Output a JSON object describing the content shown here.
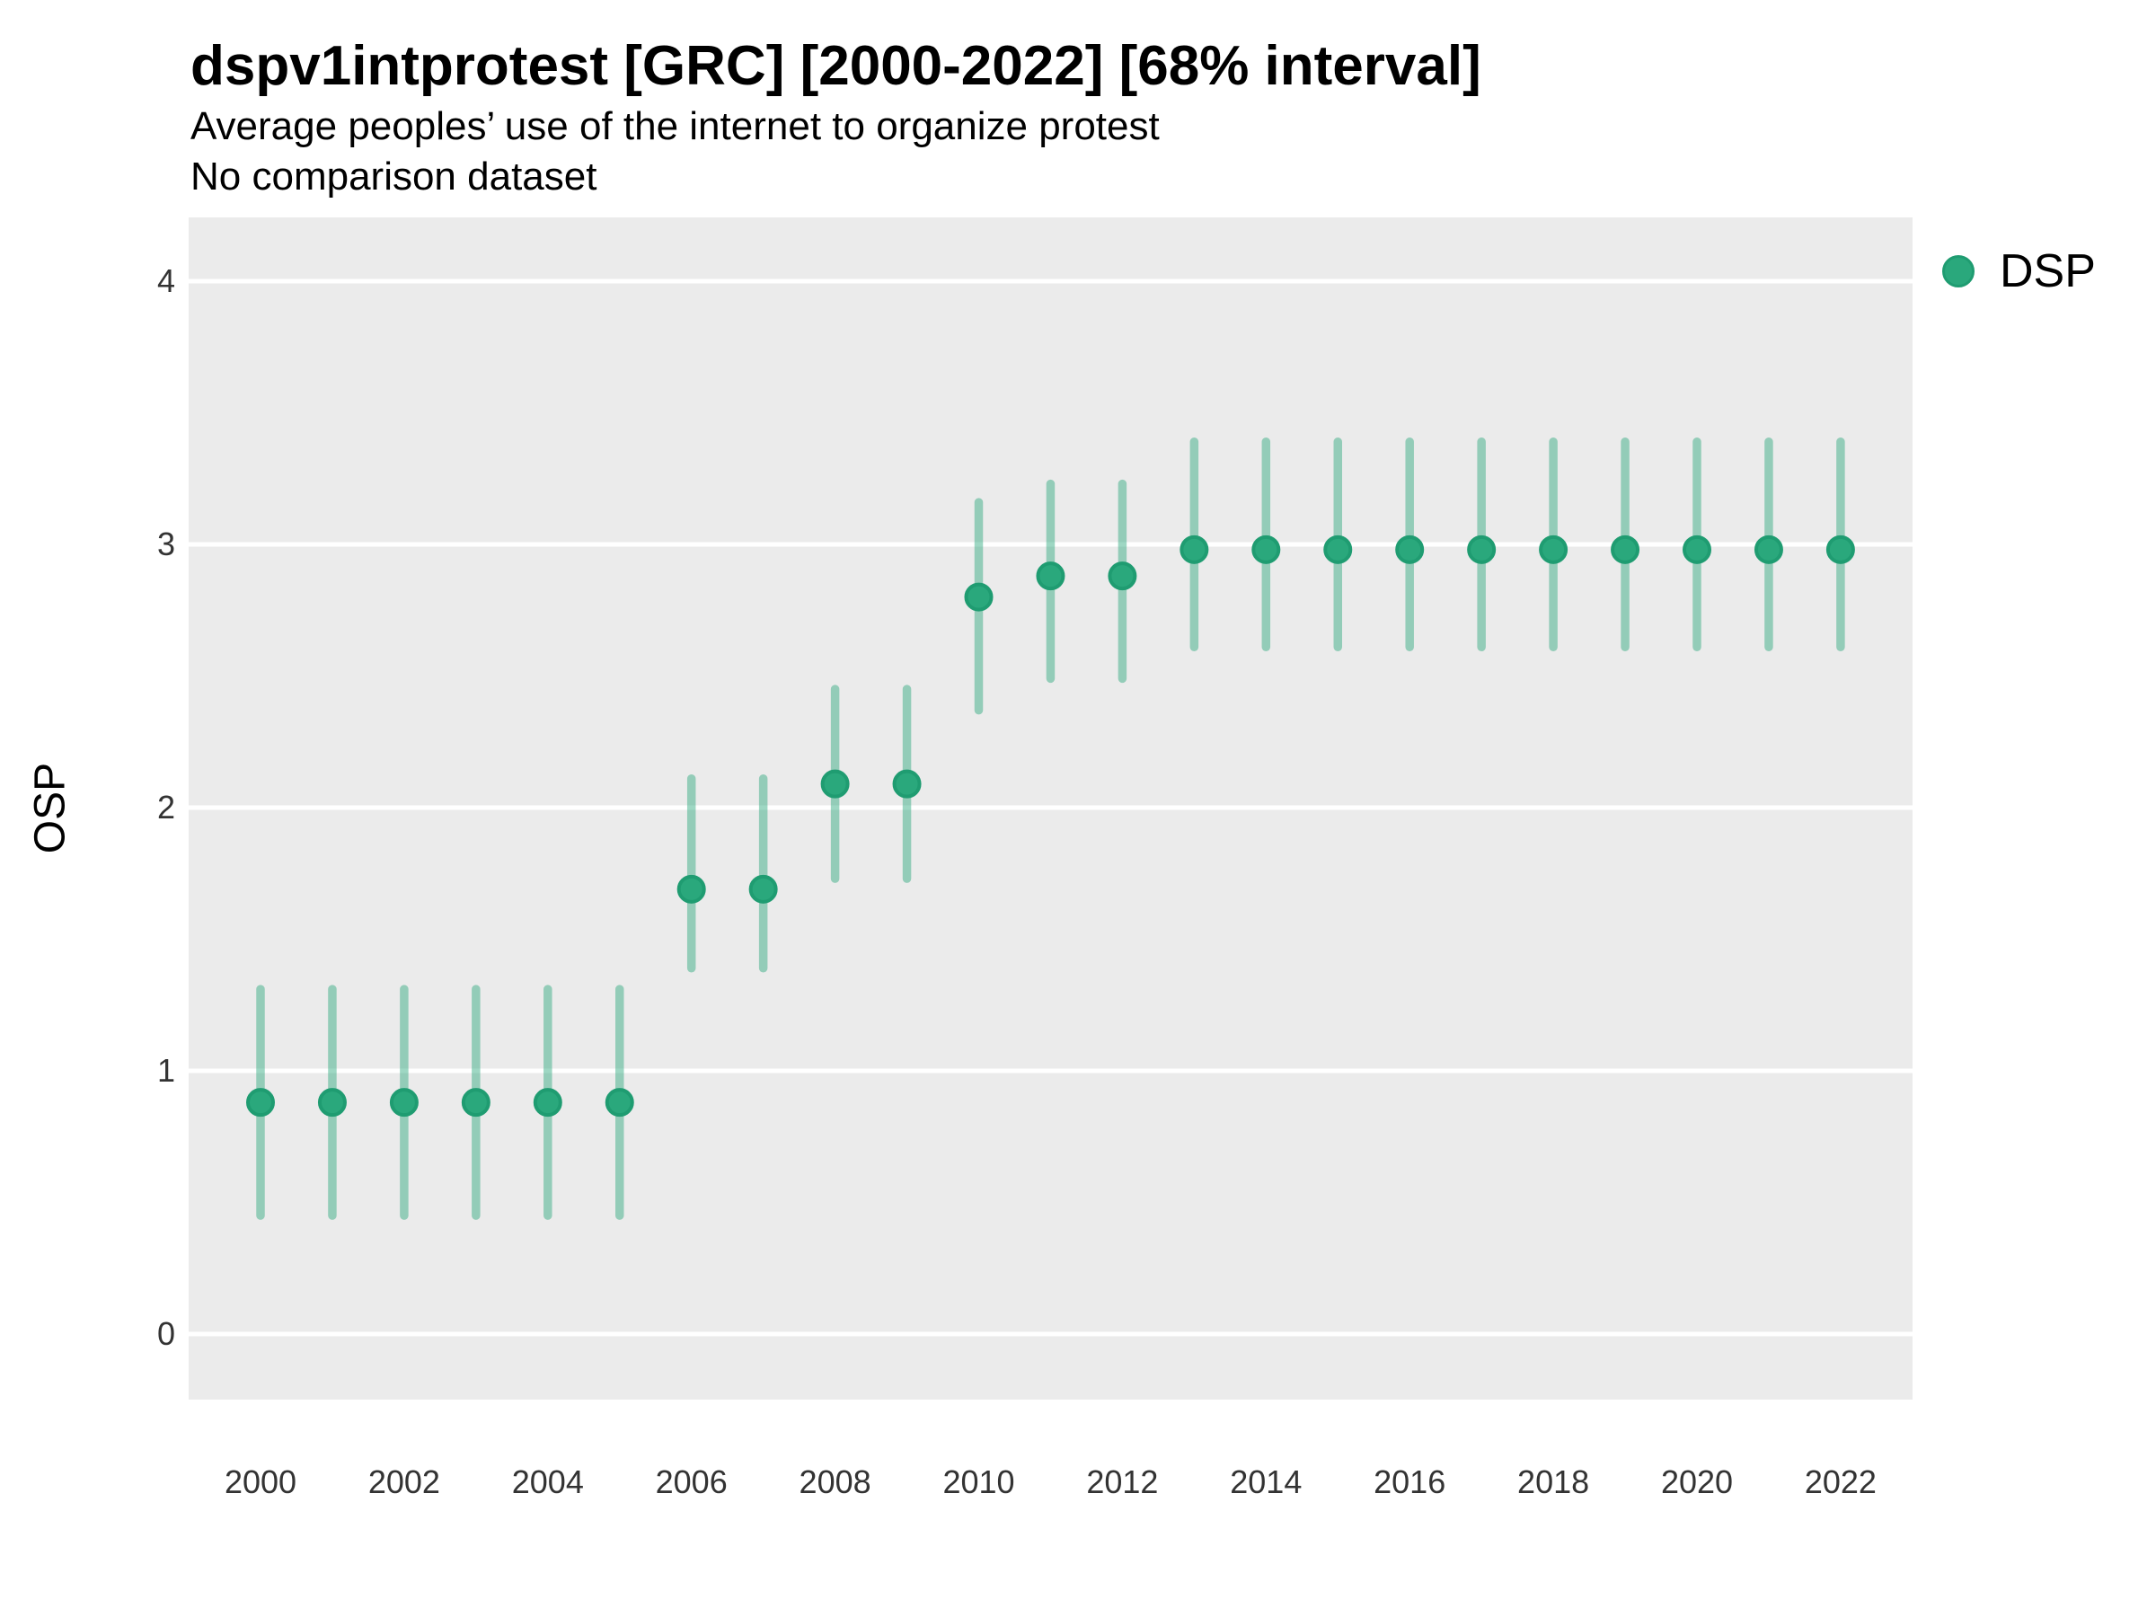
{
  "header": {
    "title": "dspv1intprotest [GRC] [2000-2022] [68% interval]",
    "subtitle_line1": "Average peoples’ use of the internet to organize protest",
    "subtitle_line2": "No comparison dataset"
  },
  "legend": {
    "label": "DSP",
    "marker": "circle-icon",
    "position": "right-top"
  },
  "axes": {
    "y_label": "OSP",
    "y_ticks": [
      0,
      1,
      2,
      3,
      4
    ],
    "x_tick_labels": [
      2000,
      2002,
      2004,
      2006,
      2008,
      2010,
      2012,
      2014,
      2016,
      2018,
      2020,
      2022
    ]
  },
  "colors": {
    "point_fill": "#2aa87c",
    "point_stroke": "#1f9c71",
    "interval_bar": "#2aa87c",
    "panel_background": "#ebebeb",
    "gridline": "#ffffff",
    "tick_text": "#333333",
    "title_text": "#000000"
  },
  "chart_data": {
    "type": "pointrange",
    "title": "dspv1intprotest [GRC] [2000-2022] [68% interval]",
    "subtitle": "Average peoples’ use of the internet to organize protest",
    "note": "No comparison dataset",
    "xlabel": "",
    "ylabel": "OSP",
    "interval_level": "68%",
    "legend_position": "right-top",
    "grid": "horizontal-white-on-gray",
    "ylim": [
      -0.25,
      4.25
    ],
    "x": [
      2000,
      2001,
      2002,
      2003,
      2004,
      2005,
      2006,
      2007,
      2008,
      2009,
      2010,
      2011,
      2012,
      2013,
      2014,
      2015,
      2016,
      2017,
      2018,
      2019,
      2020,
      2021,
      2022
    ],
    "series": [
      {
        "name": "DSP",
        "estimates": [
          0.88,
          0.88,
          0.88,
          0.88,
          0.88,
          0.88,
          1.69,
          1.69,
          2.09,
          2.09,
          2.8,
          2.88,
          2.88,
          2.98,
          2.98,
          2.98,
          2.98,
          2.98,
          2.98,
          2.98,
          2.98,
          2.98,
          2.98
        ],
        "lower": [
          0.45,
          0.45,
          0.45,
          0.45,
          0.45,
          0.45,
          1.39,
          1.39,
          1.73,
          1.73,
          2.37,
          2.49,
          2.49,
          2.61,
          2.61,
          2.61,
          2.61,
          2.61,
          2.61,
          2.61,
          2.61,
          2.61,
          2.61
        ],
        "upper": [
          1.31,
          1.31,
          1.31,
          1.31,
          1.31,
          1.31,
          2.11,
          2.11,
          2.45,
          2.45,
          3.16,
          3.23,
          3.23,
          3.39,
          3.39,
          3.39,
          3.39,
          3.39,
          3.39,
          3.39,
          3.39,
          3.39,
          3.39
        ]
      }
    ]
  }
}
